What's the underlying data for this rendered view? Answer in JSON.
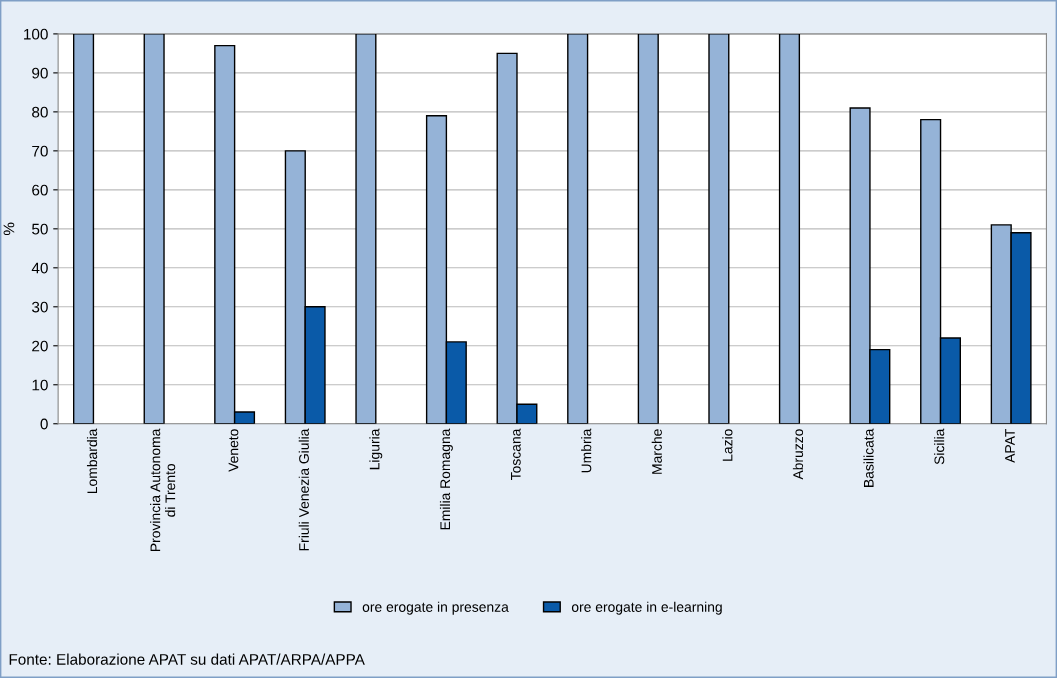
{
  "chart_data": {
    "type": "bar",
    "ylabel": "%",
    "categories": [
      "Lombardia",
      "Provincia Autonoma\ndi Trento",
      "Veneto",
      "Friuli Venezia Giulia",
      "Liguria",
      "Emilia Romagna",
      "Toscana",
      "Umbria",
      "Marche",
      "Lazio",
      "Abruzzo",
      "Basilicata",
      "Sicilia",
      "APAT"
    ],
    "series": [
      {
        "name": "ore erogate in presenza",
        "color": "#95b3d7",
        "values": [
          100,
          100,
          97,
          70,
          100,
          79,
          95,
          100,
          100,
          100,
          100,
          81,
          78,
          51
        ]
      },
      {
        "name": "ore erogate in e-learning",
        "color": "#0a5aa8",
        "values": [
          null,
          null,
          3,
          30,
          null,
          21,
          5,
          null,
          null,
          null,
          null,
          19,
          22,
          49
        ]
      }
    ],
    "ylim": [
      0,
      100
    ],
    "yticks": [
      0,
      10,
      20,
      30,
      40,
      50,
      60,
      70,
      80,
      90,
      100
    ],
    "grid": "y",
    "legend": "bottom",
    "annotations": [
      "Fonte: Elaborazione APAT su dati APAT/ARPA/APPA"
    ]
  }
}
